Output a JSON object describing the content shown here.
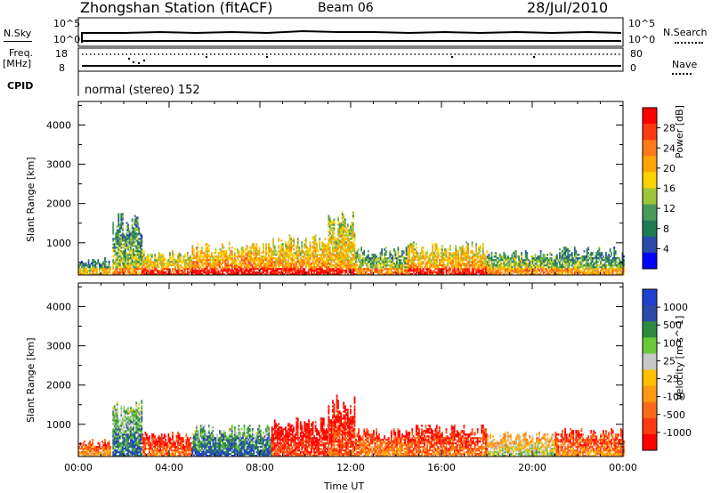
{
  "header": {
    "station": "Zhongshan Station (fitACF)",
    "beam": "Beam 06",
    "date": "28/Jul/2010"
  },
  "strips": {
    "nsky_label": "N.Sky",
    "nsearch_label": "N.Search",
    "nsky_ticks": [
      "10^5",
      "10^0"
    ],
    "nsearch_ticks": [
      "10^5",
      "10^0"
    ],
    "freq_label_1": "Freq.",
    "freq_label_2": "[MHz]",
    "freq_ticks": [
      "18",
      "8"
    ],
    "nave_label": "Nave",
    "nave_ticks": [
      "80",
      "0"
    ],
    "cpid_label": "CPID",
    "cpid_text": "normal (stereo) 152"
  },
  "chart_data": [
    {
      "type": "heatmap",
      "panel": "power",
      "xlabel": "",
      "ylabel": "Slant Range [km]",
      "x": [
        "00:00",
        "04:00",
        "08:00",
        "12:00",
        "16:00",
        "20:00",
        "00:00"
      ],
      "xlim_hours": [
        0,
        24
      ],
      "y_ticks": [
        1000,
        2000,
        3000,
        4000
      ],
      "ylim": [
        180,
        4600
      ],
      "colorbar_label": "Power [dB]",
      "colorbar_ticks": [
        "28",
        "24",
        "20",
        "16",
        "12",
        "8",
        "4"
      ],
      "colorbar_colors": [
        "#0000ff",
        "#2a4ca8",
        "#1e7a52",
        "#4a9a5c",
        "#9fc63a",
        "#ffd200",
        "#ffa500",
        "#ff7a1a",
        "#ff3a10",
        "#ff0000"
      ],
      "echo_regions": [
        {
          "t_start": 0.0,
          "t_end": 1.4,
          "r_min": 180,
          "r_max": 600,
          "level": 0.45
        },
        {
          "t_start": 1.5,
          "t_end": 2.8,
          "r_min": 180,
          "r_max": 1800,
          "level": 0.5
        },
        {
          "t_start": 2.8,
          "t_end": 5.0,
          "r_min": 180,
          "r_max": 800,
          "level": 0.7
        },
        {
          "t_start": 5.0,
          "t_end": 8.5,
          "r_min": 180,
          "r_max": 1000,
          "level": 0.8
        },
        {
          "t_start": 8.5,
          "t_end": 11.0,
          "r_min": 180,
          "r_max": 1200,
          "level": 0.75
        },
        {
          "t_start": 11.0,
          "t_end": 12.2,
          "r_min": 180,
          "r_max": 1800,
          "level": 0.7
        },
        {
          "t_start": 12.2,
          "t_end": 14.5,
          "r_min": 180,
          "r_max": 900,
          "level": 0.55
        },
        {
          "t_start": 14.5,
          "t_end": 18.0,
          "r_min": 180,
          "r_max": 1000,
          "level": 0.75
        },
        {
          "t_start": 18.0,
          "t_end": 21.0,
          "r_min": 180,
          "r_max": 800,
          "level": 0.55
        },
        {
          "t_start": 21.0,
          "t_end": 24.0,
          "r_min": 180,
          "r_max": 900,
          "level": 0.5
        }
      ]
    },
    {
      "type": "heatmap",
      "panel": "velocity",
      "xlabel": "Time UT",
      "ylabel": "Slant Range [km]",
      "x": [
        "00:00",
        "04:00",
        "08:00",
        "12:00",
        "16:00",
        "20:00",
        "00:00"
      ],
      "xlim_hours": [
        0,
        24
      ],
      "y_ticks": [
        1000,
        2000,
        3000,
        4000
      ],
      "ylim": [
        180,
        4600
      ],
      "colorbar_label": "Velocity [m s^-1]",
      "colorbar_ticks": [
        "1000",
        "500",
        "100",
        "25",
        "-25",
        "-100",
        "-500",
        "-1000"
      ],
      "colorbar_colors": [
        "#ff0000",
        "#ff3a10",
        "#ff6a1a",
        "#ff9a10",
        "#ffc000",
        "#c8c8c8",
        "#6ac83a",
        "#2e8a3e",
        "#2a4ca8",
        "#2040d0"
      ],
      "echo_regions": [
        {
          "t_start": 0.0,
          "t_end": 1.4,
          "r_min": 180,
          "r_max": 600,
          "level": 0.4
        },
        {
          "t_start": 1.5,
          "t_end": 2.8,
          "r_min": 180,
          "r_max": 1800,
          "level": 0.85
        },
        {
          "t_start": 2.8,
          "t_end": 5.0,
          "r_min": 180,
          "r_max": 800,
          "level": 0.3
        },
        {
          "t_start": 5.0,
          "t_end": 8.5,
          "r_min": 180,
          "r_max": 1000,
          "level": 0.9
        },
        {
          "t_start": 8.5,
          "t_end": 11.0,
          "r_min": 180,
          "r_max": 1200,
          "level": 0.2
        },
        {
          "t_start": 11.0,
          "t_end": 12.2,
          "r_min": 180,
          "r_max": 1800,
          "level": 0.25
        },
        {
          "t_start": 12.2,
          "t_end": 14.5,
          "r_min": 180,
          "r_max": 900,
          "level": 0.35
        },
        {
          "t_start": 14.5,
          "t_end": 18.0,
          "r_min": 180,
          "r_max": 1000,
          "level": 0.3
        },
        {
          "t_start": 18.0,
          "t_end": 21.0,
          "r_min": 180,
          "r_max": 800,
          "level": 0.6
        },
        {
          "t_start": 21.0,
          "t_end": 24.0,
          "r_min": 180,
          "r_max": 900,
          "level": 0.35
        }
      ]
    }
  ]
}
